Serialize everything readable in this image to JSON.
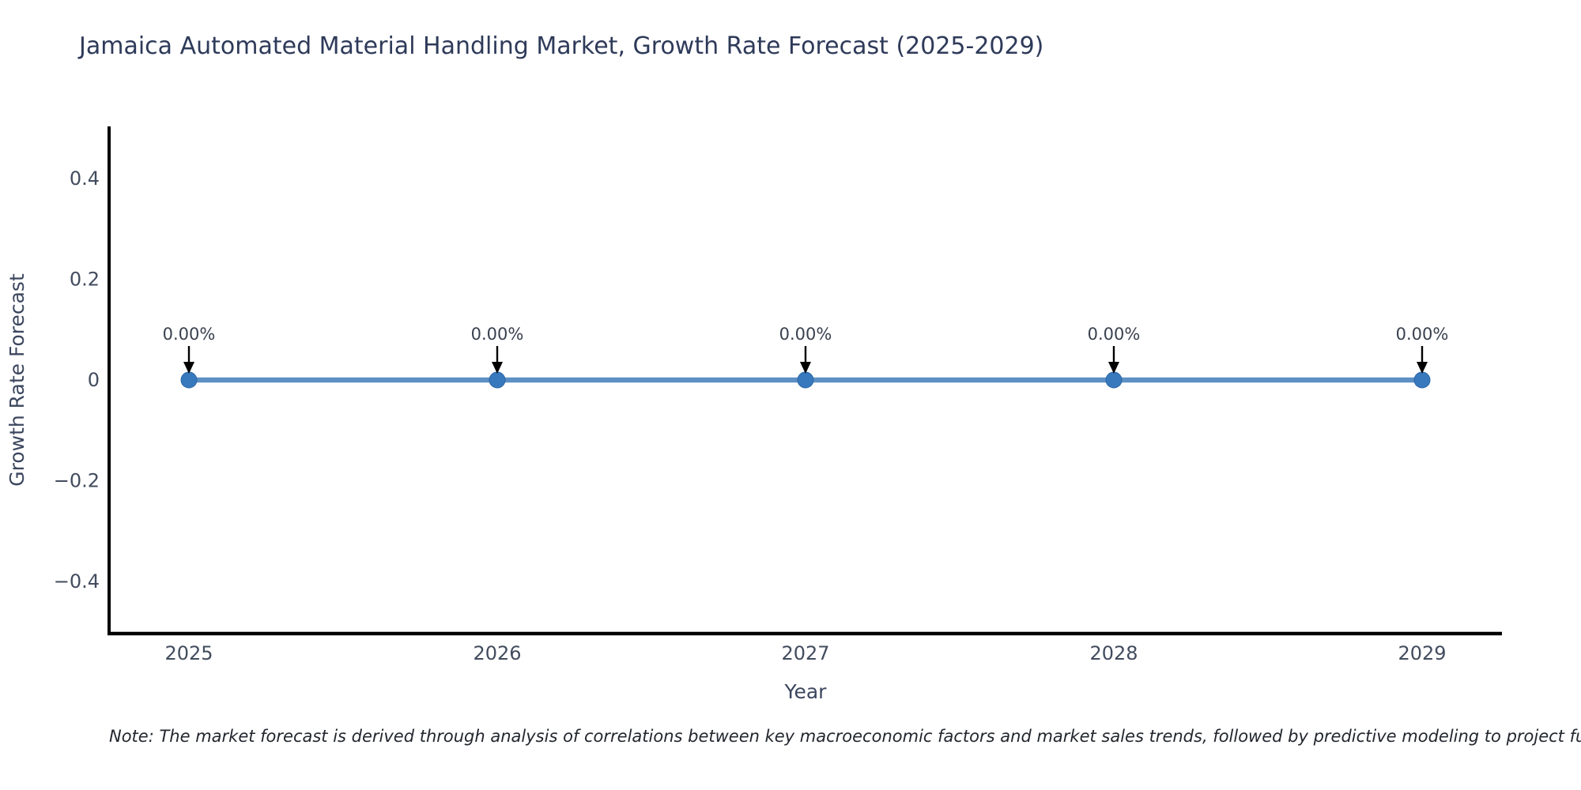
{
  "note": {
    "text": "Note: The market forecast is derived through analysis of correlations between key macroeconomic factors and market sales trends, followed by predictive modeling to project future sales"
  },
  "chart_data": {
    "type": "line",
    "title": "Jamaica Automated Material Handling Market, Growth Rate Forecast (2025-2029)",
    "xlabel": "Year",
    "ylabel": "Growth Rate Forecast",
    "categories": [
      "2025",
      "2026",
      "2027",
      "2028",
      "2029"
    ],
    "series": [
      {
        "name": "Growth Rate Forecast",
        "values": [
          0,
          0,
          0,
          0,
          0
        ]
      }
    ],
    "point_labels": [
      "0.00%",
      "0.00%",
      "0.00%",
      "0.00%",
      "0.00%"
    ],
    "ylim": [
      -0.5,
      0.5
    ],
    "yticks": {
      "values": [
        0.4,
        0.2,
        0,
        -0.2,
        -0.4
      ],
      "labels": [
        "0.4",
        "0.2",
        "0",
        "−0.2",
        "−0.4"
      ]
    },
    "grid": false,
    "legend": "none",
    "colors": {
      "line": "#5d90c4",
      "marker": "#3879be",
      "marker_edge": "#2c66a5",
      "axis": "#000000",
      "arrow": "#000000",
      "title_text": "#2e3a59",
      "tick_text": "#424c5e",
      "annotation_text": "#39414f"
    }
  }
}
